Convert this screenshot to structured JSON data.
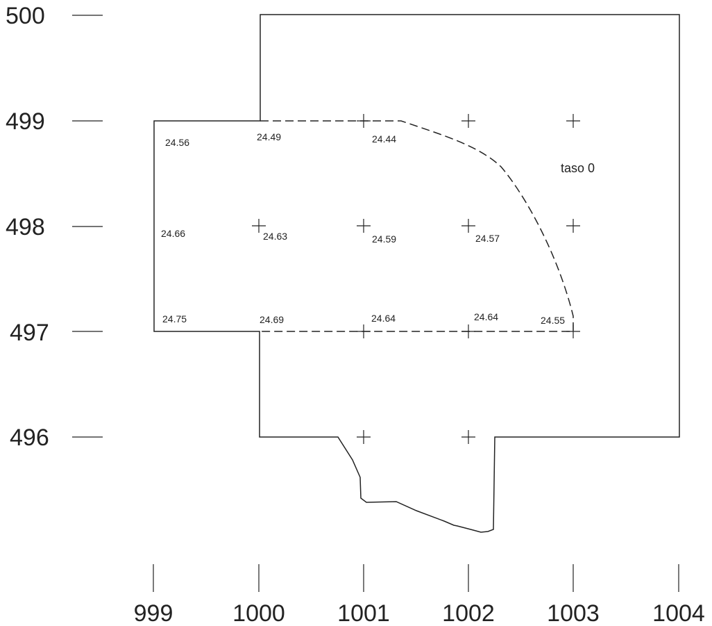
{
  "y_axis_labels": [
    "500",
    "499",
    "498",
    "497",
    "496"
  ],
  "x_axis_labels": [
    "999",
    "1000",
    "1001",
    "1002",
    "1003",
    "1004"
  ],
  "note": "taso 0",
  "elevations": [
    "24.56",
    "24.49",
    "24.44",
    "24.66",
    "24.63",
    "24.59",
    "24.57",
    "24.75",
    "24.69",
    "24.64",
    "24.64",
    "24.55"
  ],
  "colors": {
    "ink": "#222222",
    "background": "#ffffff"
  },
  "legend": "none",
  "grid": "off"
}
